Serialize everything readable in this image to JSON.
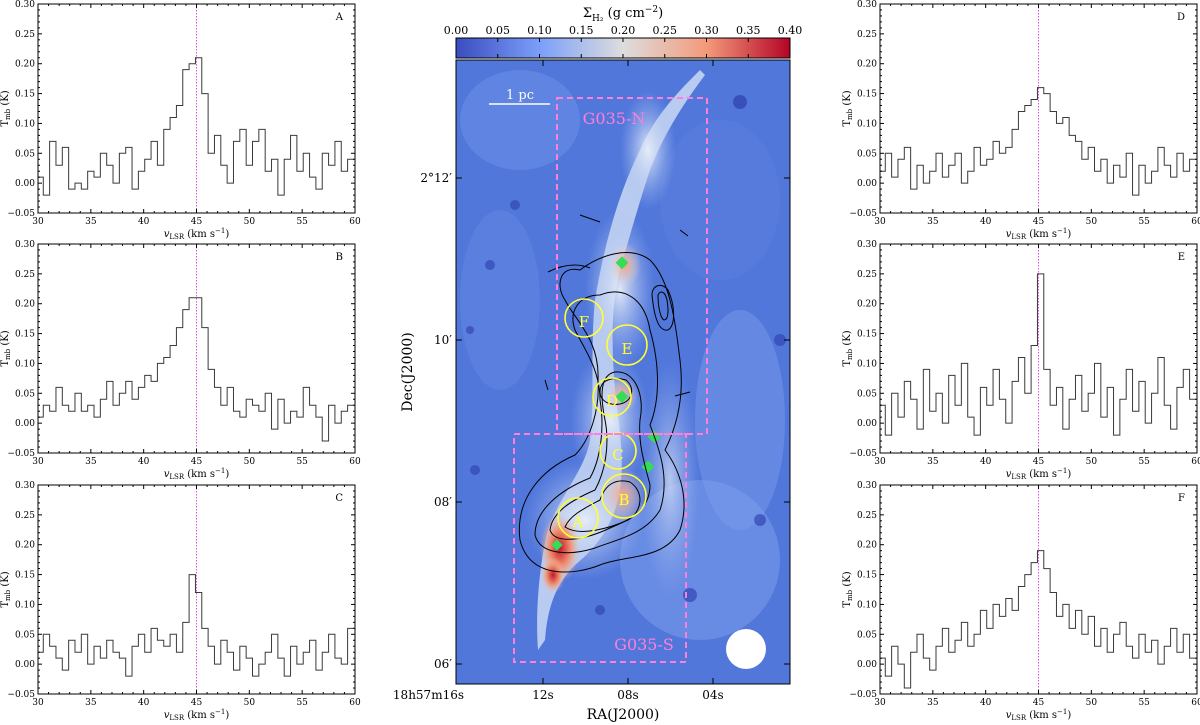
{
  "spectra_common": {
    "xlabel": "v",
    "xlabel_sub": "LSR",
    "xlabel_unit": "(km s",
    "xlabel_exp": "−1",
    "xlabel_close": ")",
    "ylabel": "T",
    "ylabel_sub": "mb",
    "ylabel_unit": "(K)",
    "xlim": [
      30,
      60
    ],
    "ylim": [
      -0.05,
      0.3
    ],
    "xticks": [
      "30",
      "35",
      "40",
      "45",
      "50",
      "55",
      "60"
    ],
    "yticks": [
      "−0.05",
      "0.00",
      "0.05",
      "0.10",
      "0.15",
      "0.20",
      "0.25",
      "0.30"
    ],
    "vline": 45,
    "vline_color": "#e040e0"
  },
  "map": {
    "colorbar_label": "Σ",
    "colorbar_sub": "H₂",
    "colorbar_unit": " (g cm",
    "colorbar_exp": "−2",
    "colorbar_close": ")",
    "colorbar_ticks": [
      "0.00",
      "0.05",
      "0.10",
      "0.15",
      "0.20",
      "0.25",
      "0.30",
      "0.35",
      "0.40"
    ],
    "ylabel": "Dec(J2000)",
    "xlabel": "RA(J2000)",
    "dec_ticks": [
      "2°12′",
      "10′",
      "08′",
      "06′"
    ],
    "ra_ticks": [
      "18h57m16s",
      "12s",
      "08s",
      "04s"
    ],
    "scalebar_label": "1 pc",
    "region_n_label": "G035-N",
    "region_s_label": "G035-S",
    "clump_labels": [
      "A",
      "B",
      "C",
      "D",
      "E",
      "F"
    ],
    "colors": {
      "region_box": "#ff7fd8",
      "clumps": "#ffff33",
      "markers": "#33dd55",
      "contours": "#000000"
    }
  },
  "chart_data": [
    {
      "type": "line",
      "panel": "A",
      "xlim": [
        30,
        60
      ],
      "ylim": [
        -0.05,
        0.3
      ],
      "vline": 45,
      "series": [
        {
          "x": [
            30.2,
            30.8,
            31.4,
            32.0,
            32.6,
            33.2,
            33.8,
            34.4,
            35.0,
            35.6,
            36.2,
            36.8,
            37.4,
            38.0,
            38.6,
            39.2,
            39.8,
            40.4,
            41.0,
            41.6,
            42.2,
            42.8,
            43.4,
            44.0,
            44.6,
            45.2,
            45.8,
            46.4,
            47.0,
            47.6,
            48.2,
            48.8,
            49.4,
            50.0,
            50.6,
            51.2,
            51.8,
            52.4,
            53.0,
            53.6,
            54.2,
            54.8,
            55.4,
            56.0,
            56.6,
            57.2,
            57.8,
            58.4,
            59.0,
            59.6
          ],
          "values": [
            0.01,
            -0.02,
            0.07,
            0.03,
            0.06,
            -0.01,
            0.0,
            -0.01,
            0.02,
            0.01,
            0.05,
            0.03,
            0.0,
            0.05,
            0.06,
            -0.01,
            0.02,
            0.04,
            0.07,
            0.03,
            0.09,
            0.11,
            0.13,
            0.19,
            0.2,
            0.21,
            0.15,
            0.05,
            0.08,
            0.03,
            0.0,
            0.07,
            0.09,
            0.03,
            0.07,
            0.09,
            0.02,
            0.04,
            -0.02,
            0.04,
            0.08,
            0.02,
            0.05,
            0.01,
            -0.01,
            0.05,
            0.03,
            0.07,
            0.02,
            0.04
          ]
        }
      ]
    },
    {
      "type": "line",
      "panel": "B",
      "xlim": [
        30,
        60
      ],
      "ylim": [
        -0.05,
        0.3
      ],
      "vline": 45,
      "series": [
        {
          "x": [
            30.2,
            30.8,
            31.4,
            32.0,
            32.6,
            33.2,
            33.8,
            34.4,
            35.0,
            35.6,
            36.2,
            36.8,
            37.4,
            38.0,
            38.6,
            39.2,
            39.8,
            40.4,
            41.0,
            41.6,
            42.2,
            42.8,
            43.4,
            44.0,
            44.6,
            45.2,
            45.8,
            46.4,
            47.0,
            47.6,
            48.2,
            48.8,
            49.4,
            50.0,
            50.6,
            51.2,
            51.8,
            52.4,
            53.0,
            53.6,
            54.2,
            54.8,
            55.4,
            56.0,
            56.6,
            57.2,
            57.8,
            58.4,
            59.0,
            59.6
          ],
          "values": [
            0.01,
            0.03,
            0.02,
            0.06,
            0.03,
            0.02,
            0.05,
            0.02,
            0.03,
            0.01,
            0.04,
            0.07,
            0.03,
            0.05,
            0.07,
            0.04,
            0.06,
            0.08,
            0.07,
            0.1,
            0.11,
            0.13,
            0.16,
            0.19,
            0.21,
            0.21,
            0.16,
            0.09,
            0.06,
            0.03,
            0.06,
            0.02,
            0.01,
            0.04,
            0.03,
            0.02,
            0.05,
            -0.01,
            0.04,
            0.0,
            0.02,
            0.01,
            0.06,
            0.03,
            0.01,
            -0.03,
            0.03,
            0.0,
            0.02,
            0.03
          ]
        }
      ]
    },
    {
      "type": "line",
      "panel": "C",
      "xlim": [
        30,
        60
      ],
      "ylim": [
        -0.05,
        0.3
      ],
      "vline": 45,
      "series": [
        {
          "x": [
            30.2,
            30.8,
            31.4,
            32.0,
            32.6,
            33.2,
            33.8,
            34.4,
            35.0,
            35.6,
            36.2,
            36.8,
            37.4,
            38.0,
            38.6,
            39.2,
            39.8,
            40.4,
            41.0,
            41.6,
            42.2,
            42.8,
            43.4,
            44.0,
            44.6,
            45.2,
            45.8,
            46.4,
            47.0,
            47.6,
            48.2,
            48.8,
            49.4,
            50.0,
            50.6,
            51.2,
            51.8,
            52.4,
            53.0,
            53.6,
            54.2,
            54.8,
            55.4,
            56.0,
            56.6,
            57.2,
            57.8,
            58.4,
            59.0,
            59.6
          ],
          "values": [
            0.02,
            0.05,
            0.03,
            0.01,
            -0.01,
            0.04,
            0.02,
            0.05,
            0.0,
            0.03,
            0.01,
            0.04,
            0.02,
            0.01,
            -0.02,
            0.03,
            0.05,
            0.02,
            0.06,
            0.04,
            0.03,
            0.05,
            0.02,
            0.07,
            0.15,
            0.12,
            0.06,
            0.03,
            0.0,
            0.04,
            0.02,
            -0.01,
            0.03,
            0.01,
            -0.02,
            0.0,
            0.02,
            0.05,
            0.01,
            -0.02,
            0.03,
            0.0,
            0.02,
            0.04,
            -0.01,
            0.02,
            0.05,
            0.01,
            0.0,
            0.06
          ]
        }
      ]
    },
    {
      "type": "line",
      "panel": "D",
      "xlim": [
        30,
        60
      ],
      "ylim": [
        -0.05,
        0.3
      ],
      "vline": 45,
      "series": [
        {
          "x": [
            30.2,
            30.8,
            31.4,
            32.0,
            32.6,
            33.2,
            33.8,
            34.4,
            35.0,
            35.6,
            36.2,
            36.8,
            37.4,
            38.0,
            38.6,
            39.2,
            39.8,
            40.4,
            41.0,
            41.6,
            42.2,
            42.8,
            43.4,
            44.0,
            44.6,
            45.2,
            45.8,
            46.4,
            47.0,
            47.6,
            48.2,
            48.8,
            49.4,
            50.0,
            50.6,
            51.2,
            51.8,
            52.4,
            53.0,
            53.6,
            54.2,
            54.8,
            55.4,
            56.0,
            56.6,
            57.2,
            57.8,
            58.4,
            59.0,
            59.6
          ],
          "values": [
            0.02,
            0.05,
            0.01,
            0.04,
            0.06,
            -0.01,
            0.03,
            0.0,
            0.02,
            0.05,
            0.01,
            0.03,
            0.05,
            0.0,
            0.02,
            0.06,
            0.03,
            0.04,
            0.07,
            0.05,
            0.06,
            0.09,
            0.12,
            0.13,
            0.14,
            0.16,
            0.15,
            0.12,
            0.1,
            0.11,
            0.08,
            0.07,
            0.04,
            0.06,
            0.02,
            0.04,
            0.0,
            0.03,
            0.01,
            0.05,
            -0.02,
            0.03,
            0.0,
            0.02,
            0.06,
            0.03,
            0.01,
            0.05,
            0.02,
            0.04
          ]
        }
      ]
    },
    {
      "type": "line",
      "panel": "E",
      "xlim": [
        30,
        60
      ],
      "ylim": [
        -0.05,
        0.3
      ],
      "vline": 45,
      "series": [
        {
          "x": [
            30.2,
            30.8,
            31.4,
            32.0,
            32.6,
            33.2,
            33.8,
            34.4,
            35.0,
            35.6,
            36.2,
            36.8,
            37.4,
            38.0,
            38.6,
            39.2,
            39.8,
            40.4,
            41.0,
            41.6,
            42.2,
            42.8,
            43.4,
            44.0,
            44.6,
            45.2,
            45.8,
            46.4,
            47.0,
            47.6,
            48.2,
            48.8,
            49.4,
            50.0,
            50.6,
            51.2,
            51.8,
            52.4,
            53.0,
            53.6,
            54.2,
            54.8,
            55.4,
            56.0,
            56.6,
            57.2,
            57.8,
            58.4,
            59.0,
            59.6
          ],
          "values": [
            0.03,
            -0.02,
            0.05,
            0.01,
            0.07,
            0.04,
            -0.01,
            0.09,
            0.02,
            0.05,
            0.0,
            0.08,
            0.03,
            0.1,
            0.01,
            -0.02,
            0.06,
            0.03,
            0.09,
            0.04,
            0.0,
            0.07,
            0.11,
            0.05,
            0.13,
            0.25,
            0.09,
            0.03,
            0.06,
            -0.01,
            0.04,
            0.08,
            0.02,
            0.05,
            0.1,
            0.01,
            0.06,
            -0.02,
            0.04,
            0.09,
            0.02,
            0.07,
            0.0,
            0.05,
            0.11,
            0.03,
            -0.01,
            0.06,
            0.09,
            0.04
          ]
        }
      ]
    },
    {
      "type": "line",
      "panel": "F",
      "xlim": [
        30,
        60
      ],
      "ylim": [
        -0.05,
        0.3
      ],
      "vline": 45,
      "series": [
        {
          "x": [
            30.2,
            30.8,
            31.4,
            32.0,
            32.6,
            33.2,
            33.8,
            34.4,
            35.0,
            35.6,
            36.2,
            36.8,
            37.4,
            38.0,
            38.6,
            39.2,
            39.8,
            40.4,
            41.0,
            41.6,
            42.2,
            42.8,
            43.4,
            44.0,
            44.6,
            45.2,
            45.8,
            46.4,
            47.0,
            47.6,
            48.2,
            48.8,
            49.4,
            50.0,
            50.6,
            51.2,
            51.8,
            52.4,
            53.0,
            53.6,
            54.2,
            54.8,
            55.4,
            56.0,
            56.6,
            57.2,
            57.8,
            58.4,
            59.0,
            59.6
          ],
          "values": [
            0.01,
            -0.02,
            0.03,
            0.0,
            -0.04,
            0.02,
            0.05,
            0.01,
            -0.01,
            0.03,
            0.06,
            0.02,
            0.04,
            0.07,
            0.03,
            0.05,
            0.09,
            0.06,
            0.1,
            0.08,
            0.11,
            0.09,
            0.13,
            0.15,
            0.17,
            0.19,
            0.16,
            0.12,
            0.08,
            0.1,
            0.06,
            0.09,
            0.05,
            0.08,
            0.03,
            0.06,
            0.02,
            0.05,
            0.07,
            0.03,
            0.01,
            0.05,
            0.02,
            0.04,
            0.0,
            0.03,
            0.06,
            0.02,
            0.05,
            0.01
          ]
        }
      ]
    }
  ]
}
